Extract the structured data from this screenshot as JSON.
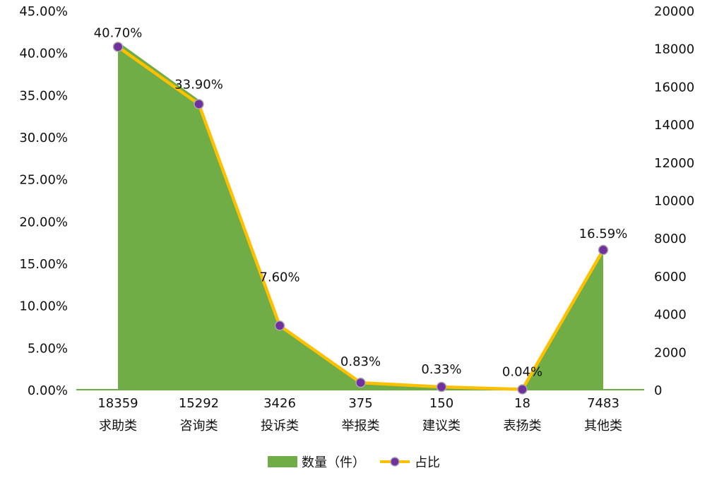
{
  "chart_data": {
    "type": "area",
    "categories": [
      "求助类",
      "咨询类",
      "投诉类",
      "举报类",
      "建议类",
      "表扬类",
      "其他类"
    ],
    "category_counts": [
      "18359",
      "15292",
      "3426",
      "375",
      "150",
      "18",
      "7483"
    ],
    "series": [
      {
        "name": "数量（件）",
        "type": "area",
        "axis": "right",
        "color": "#70AD47",
        "values": [
          18359,
          15292,
          3426,
          375,
          150,
          18,
          7483
        ]
      },
      {
        "name": "占比",
        "type": "line",
        "axis": "left",
        "color": "#FFC000",
        "marker_color": "#7030A0",
        "values": [
          40.7,
          33.9,
          7.6,
          0.83,
          0.33,
          0.04,
          16.59
        ],
        "labels": [
          "40.70%",
          "33.90%",
          "7.60%",
          "0.83%",
          "0.33%",
          "0.04%",
          "16.59%"
        ]
      }
    ],
    "y_left": {
      "min": 0,
      "max": 45,
      "ticks": [
        "0.00%",
        "5.00%",
        "10.00%",
        "15.00%",
        "20.00%",
        "25.00%",
        "30.00%",
        "35.00%",
        "40.00%",
        "45.00%"
      ]
    },
    "y_right": {
      "min": 0,
      "max": 20000,
      "ticks": [
        "0",
        "2000",
        "4000",
        "6000",
        "8000",
        "10000",
        "12000",
        "14000",
        "16000",
        "18000",
        "20000"
      ]
    },
    "legend": {
      "position": "bottom",
      "items": [
        "数量（件）",
        "占比"
      ]
    },
    "grid": false
  }
}
